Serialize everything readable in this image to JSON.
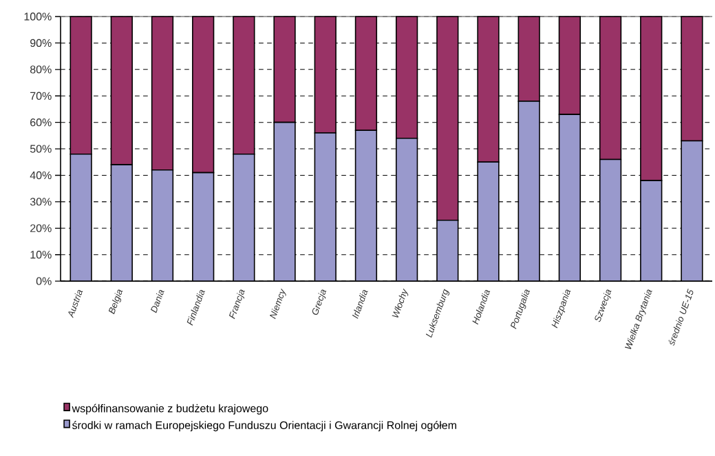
{
  "chart_data": {
    "type": "bar",
    "stacked": true,
    "categories": [
      "Austria",
      "Belgia",
      "Dania",
      "Finlandia",
      "Francja",
      "Niemcy",
      "Grecja",
      "Irlandia",
      "Włochy",
      "Luksemburg",
      "Holandia",
      "Portugalia",
      "Hiszpania",
      "Szwecja",
      "Wielka Brytania",
      "średnio UE-15"
    ],
    "series": [
      {
        "name": "środki w ramach Europejskiego Funduszu Orientacji i Gwarancji Rolnej ogółem",
        "color": "#9999cc",
        "values": [
          48,
          44,
          42,
          41,
          48,
          60,
          56,
          57,
          54,
          23,
          45,
          68,
          63,
          46,
          38,
          53
        ]
      },
      {
        "name": "współfinansowanie z budżetu krajowego",
        "color": "#993366",
        "values": [
          52,
          56,
          58,
          59,
          52,
          40,
          44,
          43,
          46,
          77,
          55,
          32,
          37,
          54,
          62,
          47
        ]
      }
    ],
    "ylim": [
      0,
      100
    ],
    "yticks": [
      {
        "value": 0,
        "label": "0%"
      },
      {
        "value": 10,
        "label": "10%"
      },
      {
        "value": 20,
        "label": "20%"
      },
      {
        "value": 30,
        "label": "30%"
      },
      {
        "value": 40,
        "label": "40%"
      },
      {
        "value": 50,
        "label": "50%"
      },
      {
        "value": 60,
        "label": "60%"
      },
      {
        "value": 70,
        "label": "70%"
      },
      {
        "value": 80,
        "label": "80%"
      },
      {
        "value": 90,
        "label": "90%"
      },
      {
        "value": 100,
        "label": "100%"
      }
    ],
    "grid": "y",
    "legend": "bottom"
  }
}
